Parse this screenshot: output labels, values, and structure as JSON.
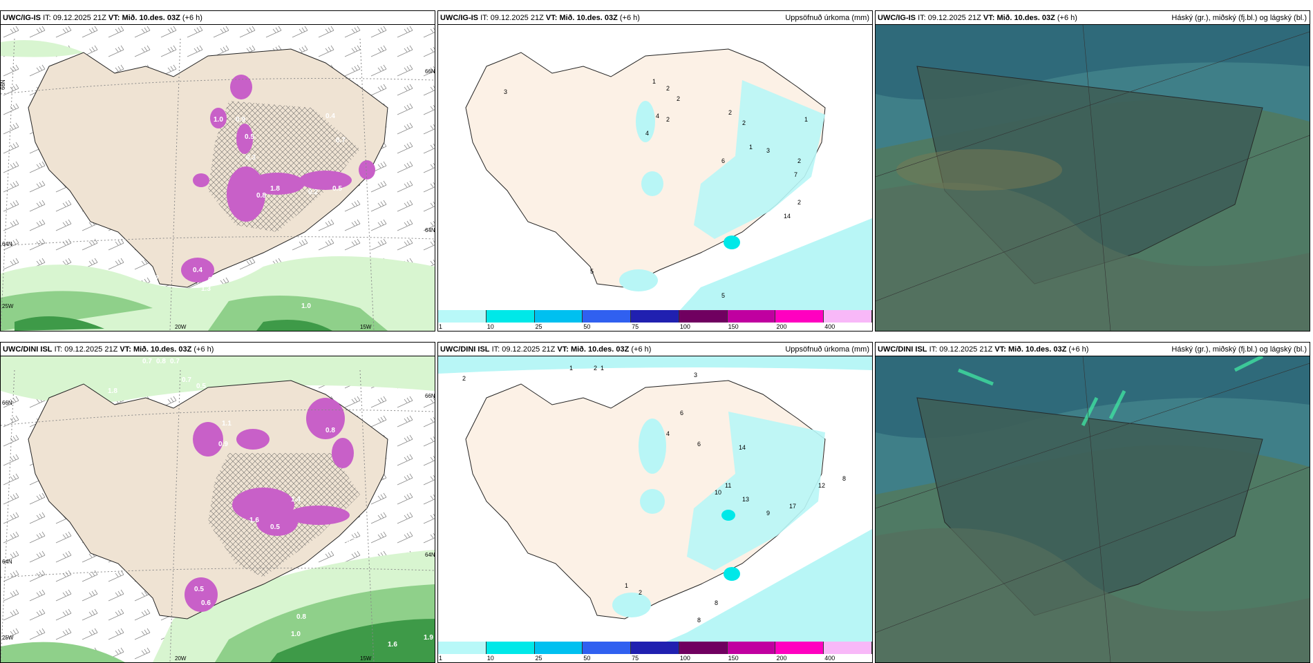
{
  "header_common": {
    "it": "IT:",
    "it_time": "09.12.2025 21Z",
    "vt_label": "VT:",
    "vt_time": "Mið. 10.des. 03Z",
    "lead": "(+6 h)"
  },
  "rows": [
    {
      "model": "UWC/IG-IS"
    },
    {
      "model": "UWC/DINI ISL"
    }
  ],
  "precip_title": "Uppsöfnuð úrkoma (mm)",
  "cloud_title": "Háský (gr.), miðský (fj.bl.) og lágský (bl.)",
  "colorbar": {
    "ticks": [
      "1",
      "10",
      "25",
      "50",
      "75",
      "100",
      "150",
      "200",
      "400"
    ],
    "colors": [
      "#b8f8f8",
      "#00e8e8",
      "#00c0f0",
      "#3060f0",
      "#2020b0",
      "#700060",
      "#c000a0",
      "#ff00c0",
      "#f8b8f8"
    ]
  },
  "grid_labels": {
    "lat66": "66N",
    "lat64": "64N",
    "lon25": "25W",
    "lon20": "20W",
    "lon15": "15W"
  },
  "top_left_values": [
    "0.5",
    "1.0",
    "0.9",
    "0.5",
    "0.3",
    "0.4",
    "0.7",
    "1.8",
    "0.8",
    "0.2",
    "0.5",
    "0.4",
    "0.7",
    "1.3",
    "1.0",
    "0.7"
  ],
  "bottom_left_values": [
    "0.7",
    "0.8",
    "0.7",
    "1.8",
    "0.7",
    "0.5",
    "1.1",
    "0.8",
    "1.4",
    "1.6",
    "0.5",
    "0.9",
    "0.5",
    "0.6",
    "0.8",
    "1.0",
    "1.6",
    "1.9",
    "0.7"
  ],
  "top_mid_values": [
    "3",
    "1",
    "2",
    "2",
    "4",
    "2",
    "4",
    "2",
    "2",
    "1",
    "6",
    "3",
    "2",
    "7",
    "2",
    "14",
    "1",
    "5",
    "5"
  ],
  "bottom_mid_values": [
    "2",
    "1",
    "2",
    "1",
    "3",
    "6",
    "4",
    "6",
    "14",
    "11",
    "10",
    "17",
    "12",
    "8",
    "9",
    "13",
    "1",
    "2",
    "8",
    "8"
  ],
  "colors": {
    "land": "#efe3d3",
    "precip_land": "#fcf1e6",
    "cyan": "#b8f6f6",
    "green_light": "#d8f5d0",
    "green_mid": "#8fd08a",
    "green_dark": "#3e9a48",
    "purple": "#c860c8",
    "cloud_sea": "#3f7f88",
    "cloud_land": "#557a6a"
  }
}
